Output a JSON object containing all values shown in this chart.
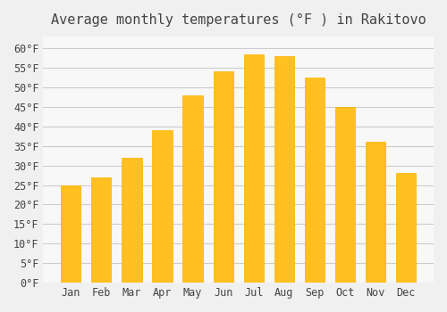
{
  "title": "Average monthly temperatures (°F ) in Rakitovo",
  "months": [
    "Jan",
    "Feb",
    "Mar",
    "Apr",
    "May",
    "Jun",
    "Jul",
    "Aug",
    "Sep",
    "Oct",
    "Nov",
    "Dec"
  ],
  "values": [
    25,
    27,
    32,
    39,
    48,
    54,
    58.5,
    58,
    52.5,
    45,
    36,
    28
  ],
  "bar_color": "#FFC020",
  "bar_edge_color": "#FFB000",
  "background_color": "#F0F0F0",
  "plot_background_color": "#F8F8F8",
  "grid_color": "#CCCCCC",
  "text_color": "#444444",
  "title_fontsize": 11,
  "tick_fontsize": 8.5,
  "ylim": [
    0,
    63
  ],
  "yticks": [
    0,
    5,
    10,
    15,
    20,
    25,
    30,
    35,
    40,
    45,
    50,
    55,
    60
  ]
}
